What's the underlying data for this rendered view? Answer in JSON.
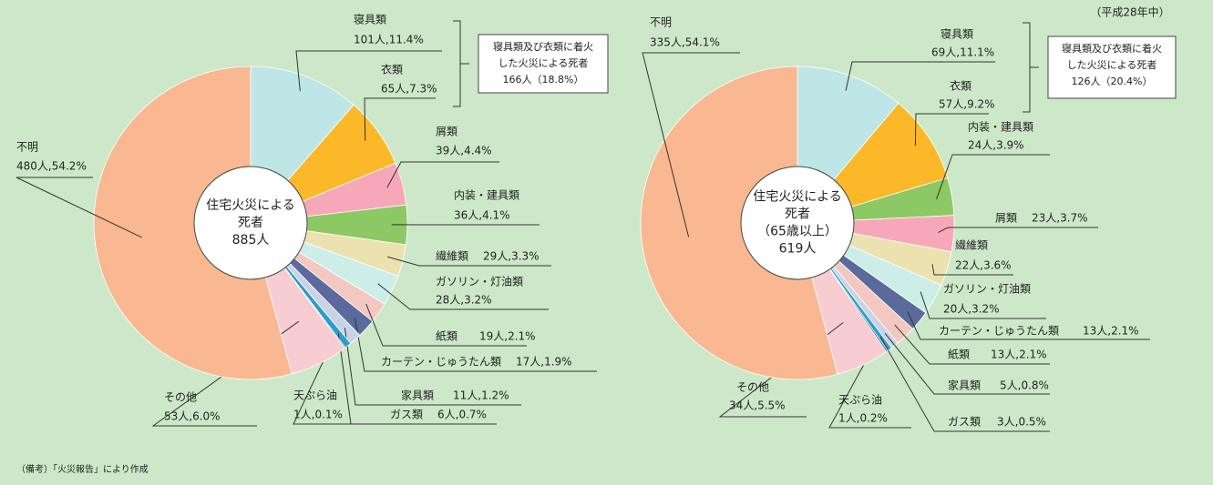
{
  "chart_data": [
    {
      "type": "pie",
      "center_label": [
        "住宅火災による",
        "死者",
        "885人"
      ],
      "categories": [
        "寝具類",
        "衣類",
        "屑類",
        "内装・建具類",
        "繊維類",
        "ガソリン・灯油類",
        "紙類",
        "カーテン・じゅうたん類",
        "家具類",
        "ガス類",
        "天ぷら油",
        "その他",
        "不明"
      ],
      "values": [
        101,
        65,
        39,
        36,
        29,
        28,
        19,
        17,
        11,
        6,
        1,
        53,
        480
      ],
      "value_labels": [
        "101人,11.4%",
        "65人,7.3%",
        "39人,4.4%",
        "36人,4.1%",
        "29人,3.3%",
        "28人,3.2%",
        "19人,2.1%",
        "17人,1.9%",
        "11人,1.2%",
        "6人,0.7%",
        "1人,0.1%",
        "53人,6.0%",
        "480人,54.2%"
      ],
      "colors": [
        "#bfe6e6",
        "#fbb829",
        "#f6a8b8",
        "#8cc863",
        "#ece2b0",
        "#cdeee8",
        "#f2c8c0",
        "#5a6a9c",
        "#c9d3e6",
        "#2e9ccb",
        "#233a78",
        "#f7cdd2",
        "#f9b891"
      ],
      "annotation": [
        "寝具類及び衣類に着火",
        "した火災による死者",
        "166人（18.8%）"
      ]
    },
    {
      "type": "pie",
      "center_label": [
        "住宅火災による",
        "死者",
        "（65歳以上）",
        "619人"
      ],
      "categories": [
        "寝具類",
        "衣類",
        "内装・建具類",
        "屑類",
        "繊維類",
        "ガソリン・灯油類",
        "カーテン・じゅうたん類",
        "紙類",
        "家具類",
        "ガス類",
        "天ぷら油",
        "その他",
        "不明"
      ],
      "values": [
        69,
        57,
        24,
        23,
        22,
        20,
        13,
        13,
        5,
        3,
        1,
        34,
        335
      ],
      "value_labels": [
        "69人,11.1%",
        "57人,9.2%",
        "24人,3.9%",
        "23人,3.7%",
        "22人,3.6%",
        "20人,3.2%",
        "13人,2.1%",
        "13人,2.1%",
        "5人,0.8%",
        "3人,0.5%",
        "1人,0.2%",
        "34人,5.5%",
        "335人,54.1%"
      ],
      "colors": [
        "#bfe6e6",
        "#fbb829",
        "#8cc863",
        "#f6a8b8",
        "#ece2b0",
        "#cdeee8",
        "#5a6a9c",
        "#f2c8c0",
        "#c9d3e6",
        "#2e9ccb",
        "#233a78",
        "#f7cdd2",
        "#f9b891"
      ],
      "annotation": [
        "寝具類及び衣類に着火",
        "した火災による死者",
        "126人（20.4%）"
      ]
    }
  ],
  "period": "（平成28年中）",
  "source": "（備考）「火災報告」により作成"
}
